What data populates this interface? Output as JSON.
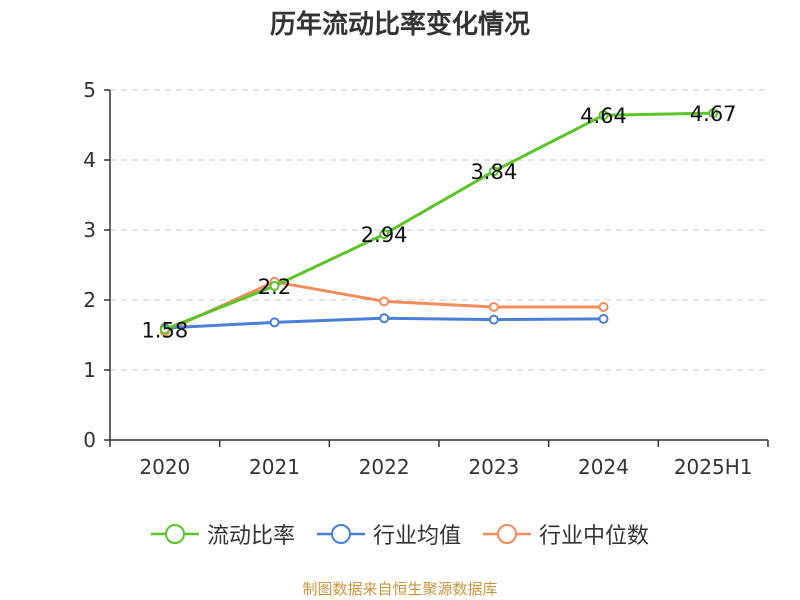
{
  "chart_data": {
    "type": "line",
    "title": "历年流动比率变化情况",
    "categories": [
      "2020",
      "2021",
      "2022",
      "2023",
      "2024",
      "2025H1"
    ],
    "ylim": [
      0,
      5
    ],
    "yticks": [
      "0",
      "1",
      "2",
      "3",
      "4",
      "5"
    ],
    "grid": true,
    "legend_position": "bottom",
    "series": [
      {
        "name": "流动比率",
        "color": "#5bc428",
        "values": [
          1.58,
          2.2,
          2.94,
          3.84,
          4.64,
          4.67
        ],
        "labels": [
          "1.58",
          "2.2",
          "2.94",
          "3.84",
          "4.64",
          "4.67"
        ]
      },
      {
        "name": "行业均值",
        "color": "#4a7fd8",
        "values": [
          1.6,
          1.68,
          1.74,
          1.72,
          1.73,
          null
        ]
      },
      {
        "name": "行业中位数",
        "color": "#f58b5b",
        "values": [
          1.55,
          2.26,
          1.98,
          1.9,
          1.9,
          null
        ]
      }
    ]
  },
  "source": "制图数据来自恒生聚源数据库"
}
